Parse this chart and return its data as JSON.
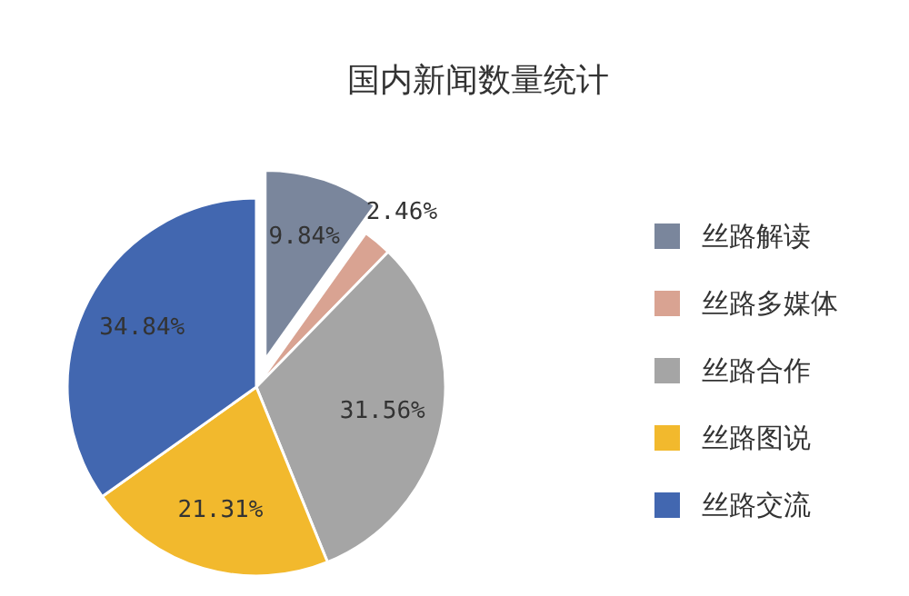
{
  "chart_data": {
    "type": "pie",
    "title": "国内新闻数量统计",
    "categories": [
      "丝路解读",
      "丝路多媒体",
      "丝路合作",
      "丝路图说",
      "丝路交流"
    ],
    "values": [
      9.84,
      2.46,
      31.56,
      21.31,
      34.84
    ],
    "colors": [
      "#7a869c",
      "#d9a392",
      "#a5a5a5",
      "#f2b92d",
      "#4267b0"
    ],
    "value_labels": [
      "9.84%",
      "2.46%",
      "31.56%",
      "21.31%",
      "34.84%"
    ],
    "legend": "right"
  }
}
